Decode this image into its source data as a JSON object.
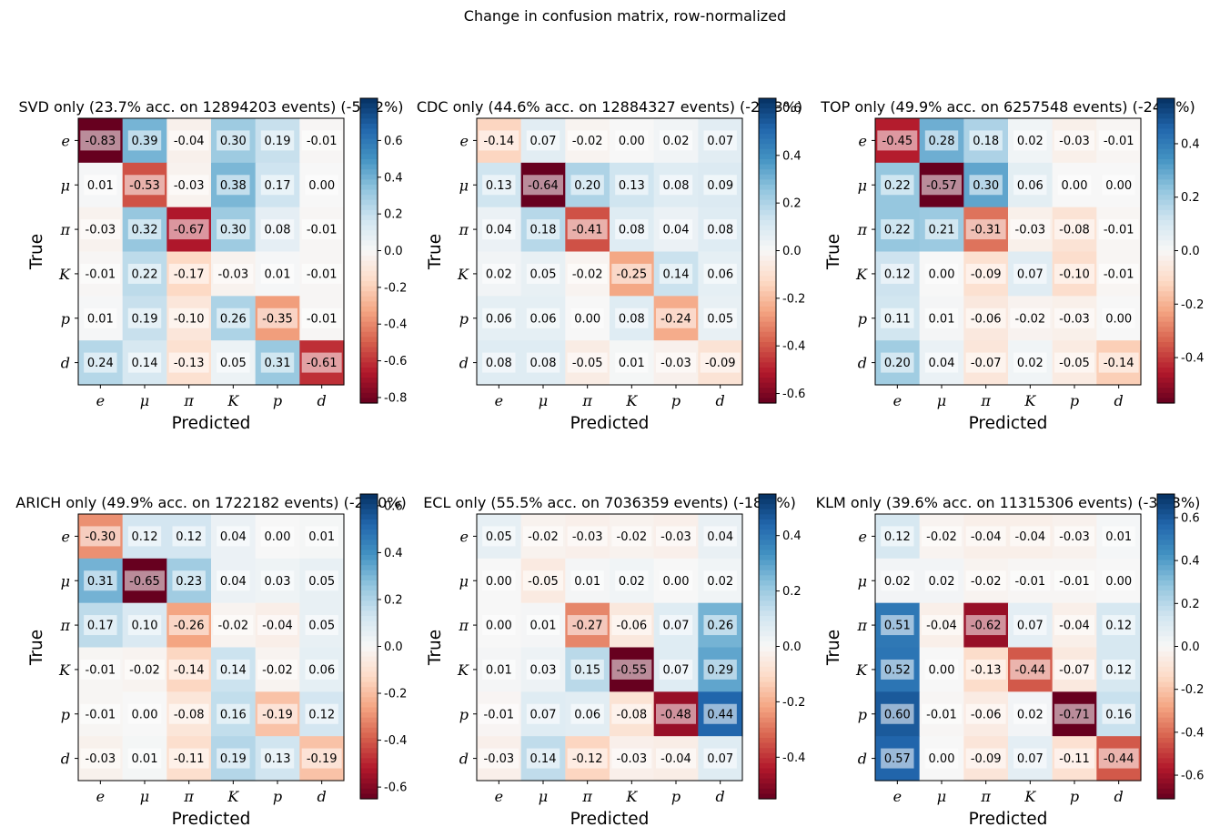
{
  "figure": {
    "suptitle": "Change in confusion matrix, row-normalized"
  },
  "chart_data": [
    {
      "type": "heatmap",
      "title": "SVD only (23.7% acc. on 12894203 events) (-53.2%)",
      "xlabel": "Predicted",
      "ylabel": "True",
      "categories": [
        "e",
        "μ",
        "π",
        "K",
        "p",
        "d"
      ],
      "colormap": "RdBu",
      "vlim": [
        -0.83,
        0.83
      ],
      "colorbar_ticks": [
        "-0.8",
        "-0.6",
        "-0.4",
        "-0.2",
        "0.0",
        "0.2",
        "0.4",
        "0.6"
      ],
      "values": [
        [
          -0.83,
          0.39,
          -0.04,
          0.3,
          0.19,
          -0.01
        ],
        [
          0.01,
          -0.53,
          -0.03,
          0.38,
          0.17,
          0.0
        ],
        [
          -0.03,
          0.32,
          -0.67,
          0.3,
          0.08,
          -0.01
        ],
        [
          -0.01,
          0.22,
          -0.17,
          -0.03,
          0.01,
          -0.01
        ],
        [
          0.01,
          0.19,
          -0.1,
          0.26,
          -0.35,
          -0.01
        ],
        [
          0.24,
          0.14,
          -0.13,
          0.05,
          0.31,
          -0.61
        ]
      ]
    },
    {
      "type": "heatmap",
      "title": "CDC only (44.6% acc. on 12884327 events) (-20.3%)",
      "xlabel": "Predicted",
      "ylabel": "True",
      "categories": [
        "e",
        "μ",
        "π",
        "K",
        "p",
        "d"
      ],
      "colormap": "RdBu",
      "vlim": [
        -0.64,
        0.64
      ],
      "colorbar_ticks": [
        "-0.6",
        "-0.4",
        "-0.2",
        "0.0",
        "0.2",
        "0.4",
        "0.6"
      ],
      "values": [
        [
          -0.14,
          0.07,
          -0.02,
          0.0,
          0.02,
          0.07
        ],
        [
          0.13,
          -0.64,
          0.2,
          0.13,
          0.08,
          0.09
        ],
        [
          0.04,
          0.18,
          -0.41,
          0.08,
          0.04,
          0.08
        ],
        [
          0.02,
          0.05,
          -0.02,
          -0.25,
          0.14,
          0.06
        ],
        [
          0.06,
          0.06,
          0.0,
          0.08,
          -0.24,
          0.05
        ],
        [
          0.08,
          0.08,
          -0.05,
          0.01,
          -0.03,
          -0.09
        ]
      ]
    },
    {
      "type": "heatmap",
      "title": "TOP only (49.9% acc. on 6257548 events) (-24.0%)",
      "xlabel": "Predicted",
      "ylabel": "True",
      "categories": [
        "e",
        "μ",
        "π",
        "K",
        "p",
        "d"
      ],
      "colormap": "RdBu",
      "vlim": [
        -0.57,
        0.57
      ],
      "colorbar_ticks": [
        "-0.4",
        "-0.2",
        "0.0",
        "0.2",
        "0.4"
      ],
      "values": [
        [
          -0.45,
          0.28,
          0.18,
          0.02,
          -0.03,
          -0.01
        ],
        [
          0.22,
          -0.57,
          0.3,
          0.06,
          0.0,
          0.0
        ],
        [
          0.22,
          0.21,
          -0.31,
          -0.03,
          -0.08,
          -0.01
        ],
        [
          0.12,
          0.0,
          -0.09,
          0.07,
          -0.1,
          -0.01
        ],
        [
          0.11,
          0.01,
          -0.06,
          -0.02,
          -0.03,
          0.0
        ],
        [
          0.2,
          0.04,
          -0.07,
          0.02,
          -0.05,
          -0.14
        ]
      ]
    },
    {
      "type": "heatmap",
      "title": "ARICH only (49.9% acc. on 1722182 events) (-24.0%)",
      "xlabel": "Predicted",
      "ylabel": "True",
      "categories": [
        "e",
        "μ",
        "π",
        "K",
        "p",
        "d"
      ],
      "colormap": "RdBu",
      "vlim": [
        -0.65,
        0.65
      ],
      "colorbar_ticks": [
        "-0.6",
        "-0.4",
        "-0.2",
        "0.0",
        "0.2",
        "0.4",
        "0.6"
      ],
      "values": [
        [
          -0.3,
          0.12,
          0.12,
          0.04,
          0.0,
          0.01
        ],
        [
          0.31,
          -0.65,
          0.23,
          0.04,
          0.03,
          0.05
        ],
        [
          0.17,
          0.1,
          -0.26,
          -0.02,
          -0.04,
          0.05
        ],
        [
          -0.01,
          -0.02,
          -0.14,
          0.14,
          -0.02,
          0.06
        ],
        [
          -0.01,
          0.0,
          -0.08,
          0.16,
          -0.19,
          0.12
        ],
        [
          -0.03,
          0.01,
          -0.11,
          0.19,
          0.13,
          -0.19
        ]
      ]
    },
    {
      "type": "heatmap",
      "title": "ECL only (55.5% acc. on 7036359 events) (-18.4%)",
      "xlabel": "Predicted",
      "ylabel": "True",
      "categories": [
        "e",
        "μ",
        "π",
        "K",
        "p",
        "d"
      ],
      "colormap": "RdBu",
      "vlim": [
        -0.55,
        0.55
      ],
      "colorbar_ticks": [
        "-0.4",
        "-0.2",
        "0.0",
        "0.2",
        "0.4"
      ],
      "values": [
        [
          0.05,
          -0.02,
          -0.03,
          -0.02,
          -0.03,
          0.04
        ],
        [
          0.0,
          -0.05,
          0.01,
          0.02,
          0.0,
          0.02
        ],
        [
          0.0,
          0.01,
          -0.27,
          -0.06,
          0.07,
          0.26
        ],
        [
          0.01,
          0.03,
          0.15,
          -0.55,
          0.07,
          0.29
        ],
        [
          -0.01,
          0.07,
          0.06,
          -0.08,
          -0.48,
          0.44
        ],
        [
          -0.03,
          0.14,
          -0.12,
          -0.03,
          -0.04,
          0.07
        ]
      ]
    },
    {
      "type": "heatmap",
      "title": "KLM only (39.6% acc. on 11315306 events) (-34.3%)",
      "xlabel": "Predicted",
      "ylabel": "True",
      "categories": [
        "e",
        "μ",
        "π",
        "K",
        "p",
        "d"
      ],
      "colormap": "RdBu",
      "vlim": [
        -0.71,
        0.71
      ],
      "colorbar_ticks": [
        "-0.6",
        "-0.4",
        "-0.2",
        "0.0",
        "0.2",
        "0.4",
        "0.6"
      ],
      "values": [
        [
          0.12,
          -0.02,
          -0.04,
          -0.04,
          -0.03,
          0.01
        ],
        [
          0.02,
          0.02,
          -0.02,
          -0.01,
          -0.01,
          0.0
        ],
        [
          0.51,
          -0.04,
          -0.62,
          0.07,
          -0.04,
          0.12
        ],
        [
          0.52,
          0.0,
          -0.13,
          -0.44,
          -0.07,
          0.12
        ],
        [
          0.6,
          -0.01,
          -0.06,
          0.02,
          -0.71,
          0.16
        ],
        [
          0.57,
          0.0,
          -0.09,
          0.07,
          -0.11,
          -0.44
        ]
      ]
    }
  ]
}
